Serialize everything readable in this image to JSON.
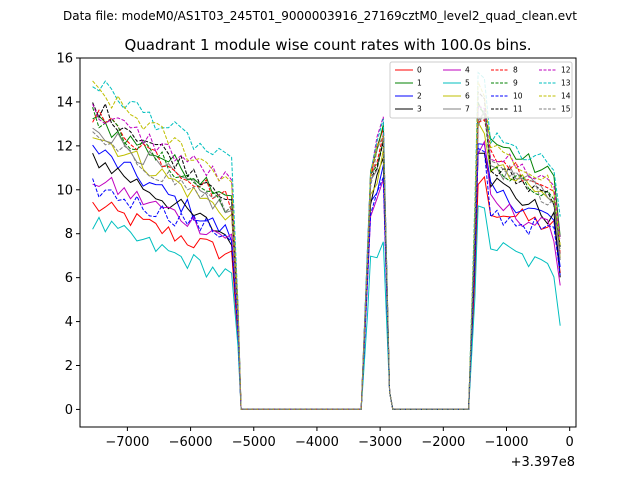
{
  "suptitle": "Data file: modeM0/AS1T03_245T01_9000003916_27169cztM0_level2_quad_clean.evt",
  "chart_data": {
    "type": "line",
    "title": "Quadrant 1 module wise count rates with 100.0s bins.",
    "xlabel": "",
    "ylabel": "",
    "x_offset_label": "+3.397e8",
    "xlim": [
      -7750,
      100
    ],
    "ylim": [
      -0.8,
      16
    ],
    "x_ticks": [
      -7000,
      -6000,
      -5000,
      -4000,
      -3000,
      -2000,
      -1000,
      0
    ],
    "x_tick_labels": [
      "−7000",
      "−6000",
      "−5000",
      "−4000",
      "−3000",
      "−2000",
      "−1000",
      "0"
    ],
    "y_ticks": [
      0,
      2,
      4,
      6,
      8,
      10,
      12,
      14,
      16
    ],
    "y_tick_labels": [
      "0",
      "2",
      "4",
      "6",
      "8",
      "10",
      "12",
      "14",
      "16"
    ],
    "legend_position": "upper-right",
    "segments": [
      {
        "start": -7550,
        "end": -5350
      },
      {
        "start": -3150,
        "end": -2950
      },
      {
        "start": -1450,
        "end": -150
      }
    ],
    "series": [
      {
        "name": "0",
        "color": "#ff0000",
        "dash": "solid",
        "levels": [
          9.3,
          7.0,
          12.6,
          10.3,
          9.2,
          7.5
        ]
      },
      {
        "name": "1",
        "color": "#008000",
        "dash": "solid",
        "levels": [
          13.2,
          9.8,
          12.8,
          13.8,
          12.4,
          9.0
        ]
      },
      {
        "name": "2",
        "color": "#0000ff",
        "dash": "solid",
        "levels": [
          11.9,
          7.9,
          11.2,
          11.8,
          10.0,
          7.5
        ]
      },
      {
        "name": "3",
        "color": "#000000",
        "dash": "solid",
        "levels": [
          11.5,
          7.8,
          11.5,
          12.0,
          10.6,
          7.0
        ]
      },
      {
        "name": "4",
        "color": "#bf00bf",
        "dash": "solid",
        "levels": [
          10.5,
          7.8,
          10.5,
          11.8,
          9.5,
          6.9
        ]
      },
      {
        "name": "5",
        "color": "#00bfbf",
        "dash": "solid",
        "levels": [
          8.5,
          6.0,
          7.8,
          8.9,
          7.6,
          5.2
        ]
      },
      {
        "name": "6",
        "color": "#bfbf00",
        "dash": "solid",
        "levels": [
          12.6,
          8.8,
          11.6,
          12.8,
          11.2,
          8.0
        ]
      },
      {
        "name": "7",
        "color": "#808080",
        "dash": "solid",
        "levels": [
          13.0,
          8.9,
          12.3,
          13.2,
          11.3,
          8.2
        ]
      },
      {
        "name": "8",
        "color": "#ff0000",
        "dash": "dashed",
        "levels": [
          13.5,
          9.4,
          12.7,
          12.9,
          11.8,
          8.5
        ]
      },
      {
        "name": "9",
        "color": "#008000",
        "dash": "dashed",
        "levels": [
          13.4,
          9.2,
          12.2,
          13.7,
          11.0,
          8.3
        ]
      },
      {
        "name": "10",
        "color": "#0000ff",
        "dash": "dashed",
        "levels": [
          10.1,
          7.9,
          10.5,
          11.5,
          9.0,
          7.2
        ]
      },
      {
        "name": "11",
        "color": "#000000",
        "dash": "dashed",
        "levels": [
          13.9,
          9.7,
          12.0,
          14.2,
          11.0,
          8.7
        ]
      },
      {
        "name": "12",
        "color": "#bf00bf",
        "dash": "dashed",
        "levels": [
          13.6,
          10.3,
          13.1,
          14.0,
          11.8,
          9.0
        ]
      },
      {
        "name": "13",
        "color": "#00bfbf",
        "dash": "dashed",
        "levels": [
          14.9,
          11.1,
          13.1,
          15.2,
          12.4,
          9.8
        ]
      },
      {
        "name": "14",
        "color": "#bfbf00",
        "dash": "dashed",
        "levels": [
          14.6,
          10.4,
          12.6,
          14.6,
          11.9,
          8.8
        ]
      },
      {
        "name": "15",
        "color": "#808080",
        "dash": "dashed",
        "levels": [
          12.3,
          9.1,
          12.4,
          13.2,
          11.1,
          8.4
        ]
      }
    ]
  }
}
